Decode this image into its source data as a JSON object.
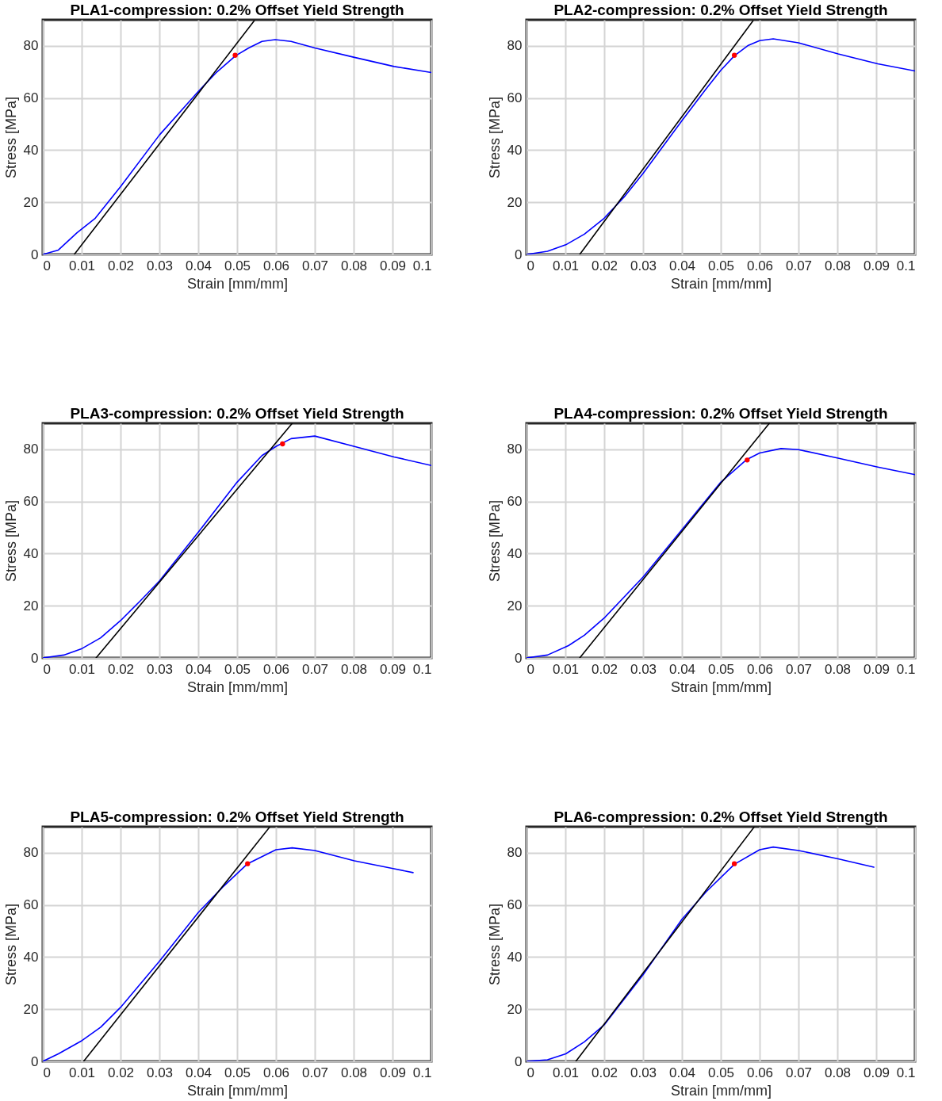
{
  "chart_data": [
    {
      "type": "line",
      "title": "PLA1-compression: 0.2% Offset Yield Strength",
      "xlabel": "Strain [mm/mm]",
      "ylabel": "Stress [MPa]",
      "xlim": [
        0,
        0.1
      ],
      "xticks": [
        0,
        0.01,
        0.02,
        0.03,
        0.04,
        0.05,
        0.06,
        0.07,
        0.08,
        0.09,
        0.1
      ],
      "ylim": [
        0,
        90
      ],
      "yticks": [
        0,
        20,
        40,
        60,
        80
      ],
      "grid": true,
      "series": [
        {
          "type": "line",
          "color": "#0000ff",
          "x": [
            0,
            0.004,
            0.0088,
            0.0135,
            0.02,
            0.03,
            0.04,
            0.0448,
            0.0496,
            0.053,
            0.0564,
            0.0598,
            0.0639,
            0.07,
            0.0802,
            0.0904,
            0.1
          ],
          "values": [
            0,
            1.7,
            8.3,
            13.9,
            26,
            45.8,
            62.5,
            70,
            76.2,
            79.2,
            81.7,
            82.4,
            81.7,
            79.2,
            75.6,
            72.1,
            69.8
          ]
        },
        {
          "type": "line",
          "color": "#000000",
          "x": [
            0.0081,
            0.0544
          ],
          "values": [
            0,
            89.6
          ]
        },
        {
          "type": "scatter",
          "color": "#ff0000",
          "marker": "circle",
          "x": [
            0.0495
          ],
          "values": [
            76.4
          ]
        }
      ]
    },
    {
      "type": "line",
      "title": "PLA2-compression: 0.2% Offset Yield Strength",
      "xlabel": "Strain [mm/mm]",
      "ylabel": "Stress [MPa]",
      "xlim": [
        0,
        0.1
      ],
      "xticks": [
        0,
        0.01,
        0.02,
        0.03,
        0.04,
        0.05,
        0.06,
        0.07,
        0.08,
        0.09,
        0.1
      ],
      "ylim": [
        0,
        90
      ],
      "yticks": [
        0,
        20,
        40,
        60,
        80
      ],
      "grid": true,
      "series": [
        {
          "type": "line",
          "color": "#0000ff",
          "x": [
            0,
            0.0054,
            0.0101,
            0.0149,
            0.02,
            0.0251,
            0.03,
            0.04,
            0.0462,
            0.05,
            0.0535,
            0.0571,
            0.06,
            0.0635,
            0.07,
            0.0802,
            0.0904,
            0.1
          ],
          "values": [
            0,
            1.2,
            3.7,
            7.8,
            13.9,
            22,
            31.1,
            51.3,
            63.5,
            70.6,
            76.2,
            80.2,
            82,
            82.7,
            81.2,
            76.9,
            73.1,
            70.4
          ]
        },
        {
          "type": "line",
          "color": "#000000",
          "x": [
            0.0137,
            0.0583
          ],
          "values": [
            0,
            89.6
          ]
        },
        {
          "type": "scatter",
          "color": "#ff0000",
          "marker": "circle",
          "x": [
            0.0535
          ],
          "values": [
            76.4
          ]
        }
      ]
    },
    {
      "type": "line",
      "title": "PLA3-compression: 0.2% Offset Yield Strength",
      "xlabel": "Strain [mm/mm]",
      "ylabel": "Stress [MPa]",
      "xlim": [
        0,
        0.1
      ],
      "xticks": [
        0,
        0.01,
        0.02,
        0.03,
        0.04,
        0.05,
        0.06,
        0.07,
        0.08,
        0.09,
        0.1
      ],
      "ylim": [
        0,
        90
      ],
      "yticks": [
        0,
        20,
        40,
        60,
        80
      ],
      "grid": true,
      "series": [
        {
          "type": "line",
          "color": "#0000ff",
          "x": [
            0,
            0.0054,
            0.0101,
            0.0149,
            0.02,
            0.0251,
            0.03,
            0.04,
            0.05,
            0.0564,
            0.06,
            0.0639,
            0.07,
            0.0802,
            0.0904,
            0.1
          ],
          "values": [
            0,
            1.1,
            3.6,
            7.7,
            14.3,
            21.9,
            29.5,
            48.2,
            67.4,
            77.6,
            81.1,
            84.1,
            85.1,
            81.1,
            77.1,
            73.8
          ]
        },
        {
          "type": "line",
          "color": "#000000",
          "x": [
            0.0137,
            0.0642
          ],
          "values": [
            0,
            90
          ]
        },
        {
          "type": "scatter",
          "color": "#ff0000",
          "marker": "circle",
          "x": [
            0.0617
          ],
          "values": [
            82.1
          ]
        }
      ]
    },
    {
      "type": "line",
      "title": "PLA4-compression: 0.2% Offset Yield Strength",
      "xlabel": "Strain [mm/mm]",
      "ylabel": "Stress [MPa]",
      "xlim": [
        0,
        0.1
      ],
      "xticks": [
        0,
        0.01,
        0.02,
        0.03,
        0.04,
        0.05,
        0.06,
        0.07,
        0.08,
        0.09,
        0.1
      ],
      "ylim": [
        0,
        90
      ],
      "yticks": [
        0,
        20,
        40,
        60,
        80
      ],
      "grid": true,
      "series": [
        {
          "type": "line",
          "color": "#0000ff",
          "x": [
            0,
            0.0054,
            0.0108,
            0.0149,
            0.02,
            0.03,
            0.04,
            0.05,
            0.0567,
            0.06,
            0.0655,
            0.07,
            0.0802,
            0.0904,
            0.1
          ],
          "values": [
            0,
            1.1,
            4.7,
            8.7,
            15.3,
            31,
            49.2,
            67.4,
            76.1,
            78.6,
            80.3,
            79.9,
            76.6,
            73.2,
            70.3
          ]
        },
        {
          "type": "line",
          "color": "#000000",
          "x": [
            0.0137,
            0.0625
          ],
          "values": [
            0,
            90
          ]
        },
        {
          "type": "scatter",
          "color": "#ff0000",
          "marker": "circle",
          "x": [
            0.0568
          ],
          "values": [
            75.9
          ]
        }
      ]
    },
    {
      "type": "line",
      "title": "PLA5-compression: 0.2% Offset Yield Strength",
      "xlabel": "Strain [mm/mm]",
      "ylabel": "Stress [MPa]",
      "xlim": [
        0,
        0.1
      ],
      "xticks": [
        0,
        0.01,
        0.02,
        0.03,
        0.04,
        0.05,
        0.06,
        0.07,
        0.08,
        0.09,
        0.1
      ],
      "ylim": [
        0,
        90
      ],
      "yticks": [
        0,
        20,
        40,
        60,
        80
      ],
      "grid": true,
      "series": [
        {
          "type": "line",
          "color": "#0000ff",
          "x": [
            0,
            0.004,
            0.0101,
            0.0149,
            0.02,
            0.03,
            0.04,
            0.0462,
            0.0527,
            0.06,
            0.0642,
            0.07,
            0.0802,
            0.0904,
            0.0953
          ],
          "values": [
            0,
            2.9,
            8,
            13.1,
            20.7,
            38.4,
            57.1,
            66.7,
            75.8,
            81.2,
            81.9,
            80.9,
            76.9,
            73.9,
            72.4
          ]
        },
        {
          "type": "line",
          "color": "#000000",
          "x": [
            0.0105,
            0.0584
          ],
          "values": [
            0,
            89.9
          ]
        },
        {
          "type": "scatter",
          "color": "#ff0000",
          "marker": "circle",
          "x": [
            0.0527
          ],
          "values": [
            75.8
          ]
        }
      ]
    },
    {
      "type": "line",
      "title": "PLA6-compression: 0.2% Offset Yield Strength",
      "xlabel": "Strain [mm/mm]",
      "ylabel": "Stress [MPa]",
      "xlim": [
        0,
        0.1
      ],
      "xticks": [
        0,
        0.01,
        0.02,
        0.03,
        0.04,
        0.05,
        0.06,
        0.07,
        0.08,
        0.09,
        0.1
      ],
      "ylim": [
        0,
        90
      ],
      "yticks": [
        0,
        20,
        40,
        60,
        80
      ],
      "grid": true,
      "series": [
        {
          "type": "line",
          "color": "#0000ff",
          "x": [
            0,
            0.0054,
            0.0101,
            0.0149,
            0.02,
            0.03,
            0.04,
            0.0462,
            0.0535,
            0.06,
            0.0635,
            0.07,
            0.0802,
            0.0894
          ],
          "values": [
            0,
            0.6,
            2.9,
            7.5,
            14,
            33.2,
            54.5,
            65,
            75.6,
            81.2,
            82.2,
            80.9,
            77.7,
            74.5
          ]
        },
        {
          "type": "line",
          "color": "#000000",
          "x": [
            0.0127,
            0.0586
          ],
          "values": [
            0,
            89.9
          ]
        },
        {
          "type": "scatter",
          "color": "#ff0000",
          "marker": "circle",
          "x": [
            0.0535
          ],
          "values": [
            75.8
          ]
        }
      ]
    }
  ]
}
